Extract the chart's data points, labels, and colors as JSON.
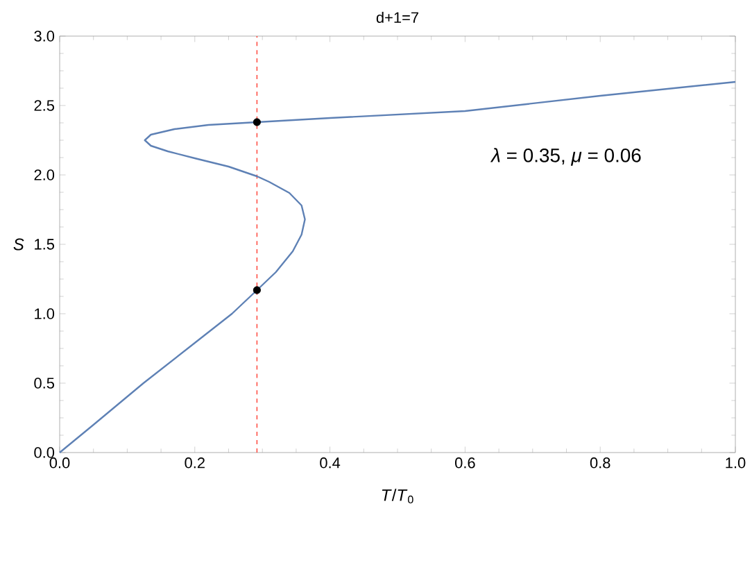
{
  "chart_data": {
    "type": "line",
    "title": "d+1=7",
    "xlabel": "*T*/*T*$_{0}$",
    "ylabel": "*S*",
    "xlim": [
      0,
      1
    ],
    "ylim": [
      0,
      3
    ],
    "xticks": [
      {
        "value": 0,
        "label": "0.0"
      },
      0.2,
      0.4,
      0.6,
      0.8,
      {
        "value": 1,
        "label": "1.0"
      }
    ],
    "yticks": [
      {
        "value": 0,
        "label": "0.0"
      },
      0.5,
      {
        "value": 1,
        "label": "1.0"
      },
      1.5,
      {
        "value": 2,
        "label": "2.0"
      },
      2.5,
      {
        "value": 3,
        "label": "3.0"
      }
    ],
    "grid": false,
    "marker": "none",
    "series": [
      {
        "color": "#5e81b5",
        "x": [
          0,
          0.05,
          0.124,
          0.2,
          0.255,
          0.292,
          0.32,
          0.345,
          0.358,
          0.363,
          0.358,
          0.34,
          0.31,
          0.292,
          0.25,
          0.2,
          0.16,
          0.135,
          0.126,
          0.135,
          0.17,
          0.22,
          0.292,
          0.4,
          0.6,
          0.8,
          1.0
        ],
        "values": [
          0,
          0.2,
          0.5,
          0.79,
          1.0,
          1.17,
          1.3,
          1.45,
          1.57,
          1.68,
          1.78,
          1.87,
          1.95,
          1.99,
          2.06,
          2.12,
          2.17,
          2.21,
          2.25,
          2.29,
          2.33,
          2.36,
          2.38,
          2.41,
          2.46,
          2.57,
          2.67
        ]
      },
      {
        "type": "scatter",
        "color": "#000000",
        "marker": "circle",
        "x": [
          0.292,
          0.292
        ],
        "values": [
          1.17,
          2.38
        ]
      }
    ],
    "ref_lines": [
      {
        "axis": "x",
        "value": 0.292,
        "color": "#ff3b30",
        "line_style": "dashed"
      }
    ],
    "annotations": [
      "*λ* = 0.35, *μ* = 0.06"
    ]
  }
}
